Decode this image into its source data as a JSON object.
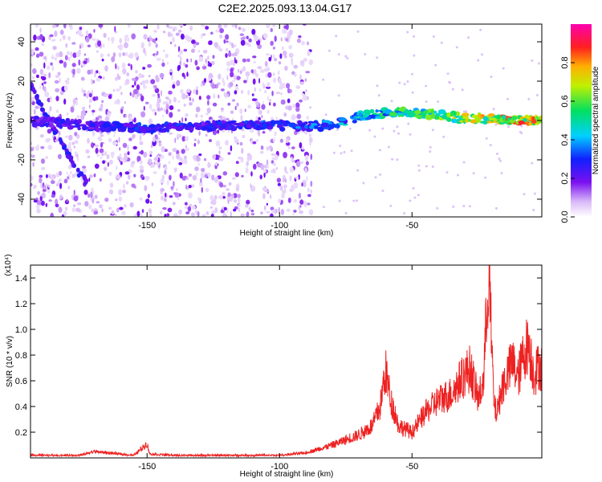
{
  "figure": {
    "title": "C2E2.2025.093.13.04.G17"
  },
  "chart_data": [
    {
      "type": "heatmap",
      "xlabel": "Height of straight line (km)",
      "ylabel": "Frequency (Hz)",
      "xlim": [
        -194,
        -1
      ],
      "ylim": [
        -49,
        49
      ],
      "xticks": [
        -150,
        -100,
        -50
      ],
      "yticks": [
        -40,
        -20,
        0,
        20,
        40
      ],
      "colorbar": {
        "label": "Normalized spectral amplitude",
        "range": [
          0.0,
          1.0
        ],
        "ticks": [
          0.0,
          0.2,
          0.4,
          0.6,
          0.8
        ],
        "colormap": "rainbow (white-purple-blue-cyan-green-yellow-red-magenta)"
      },
      "features": {
        "main_band": [
          {
            "x": -194,
            "y": 0,
            "amp": 0.28
          },
          {
            "x": -170,
            "y": -3,
            "amp": 0.3
          },
          {
            "x": -150,
            "y": -4,
            "amp": 0.33
          },
          {
            "x": -130,
            "y": -3,
            "amp": 0.3
          },
          {
            "x": -110,
            "y": -2,
            "amp": 0.33
          },
          {
            "x": -90,
            "y": -3,
            "amp": 0.38
          },
          {
            "x": -80,
            "y": -2,
            "amp": 0.42
          },
          {
            "x": -70,
            "y": 2,
            "amp": 0.5
          },
          {
            "x": -60,
            "y": 4,
            "amp": 0.56
          },
          {
            "x": -50,
            "y": 4,
            "amp": 0.62
          },
          {
            "x": -40,
            "y": 3,
            "amp": 0.7
          },
          {
            "x": -30,
            "y": 1,
            "amp": 0.72
          },
          {
            "x": -20,
            "y": 1,
            "amp": 0.8
          },
          {
            "x": -10,
            "y": 0,
            "amp": 0.88
          },
          {
            "x": -1,
            "y": 0,
            "amp": 0.8
          }
        ],
        "descending_track": [
          {
            "x": -194,
            "y": 18
          },
          {
            "x": -188,
            "y": 2
          },
          {
            "x": -182,
            "y": -12
          },
          {
            "x": -176,
            "y": -26
          },
          {
            "x": -172,
            "y": -33
          }
        ],
        "noise_region_x": [
          -194,
          -88
        ]
      }
    },
    {
      "type": "line",
      "xlabel": "Height of straight line (km)",
      "ylabel": "SNR (10 * v/v)",
      "yscale_label": "(x10⁴)",
      "xlim": [
        -194,
        -1
      ],
      "ylim": [
        0,
        1.5
      ],
      "xticks": [
        -150,
        -100,
        -50
      ],
      "yticks": [
        0.2,
        0.4,
        0.6,
        0.8,
        1.0,
        1.2,
        1.4
      ],
      "color": "#ee2222",
      "series": [
        {
          "x": [
            -194,
            -175,
            -170,
            -155,
            -150,
            -149,
            -140,
            -120,
            -100,
            -90,
            -85,
            -80,
            -75,
            -70,
            -65,
            -62,
            -60,
            -58,
            -55,
            -50,
            -45,
            -40,
            -35,
            -32,
            -30,
            -28,
            -25,
            -23,
            -22,
            -21,
            -20,
            -19,
            -18,
            -16,
            -14,
            -12,
            -10,
            -8,
            -6,
            -4,
            -2,
            -1
          ],
          "y": [
            0.02,
            0.02,
            0.05,
            0.02,
            0.11,
            0.03,
            0.02,
            0.02,
            0.02,
            0.04,
            0.07,
            0.1,
            0.14,
            0.18,
            0.25,
            0.4,
            0.68,
            0.45,
            0.25,
            0.2,
            0.35,
            0.45,
            0.5,
            0.6,
            0.65,
            0.7,
            0.45,
            0.6,
            1.05,
            1.5,
            0.9,
            0.4,
            0.35,
            0.55,
            0.65,
            0.75,
            0.62,
            0.8,
            0.9,
            0.65,
            0.72,
            0.7
          ]
        }
      ]
    }
  ]
}
